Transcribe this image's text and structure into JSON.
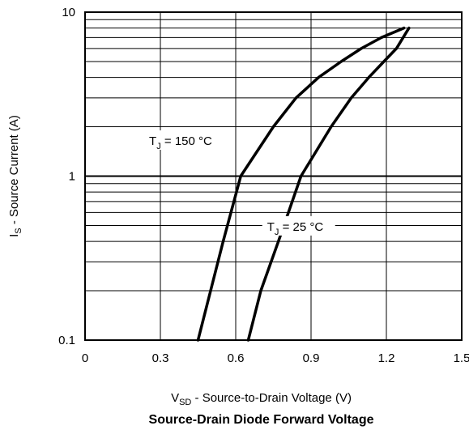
{
  "chart_data": {
    "type": "line",
    "title": "Source-Drain Diode Forward Voltage",
    "xlabel": {
      "main": "V",
      "sub": "SD",
      "rest": " - Source-to-Drain Voltage (V)"
    },
    "ylabel": {
      "main": "I",
      "sub": "S",
      "rest": " - Source Current (A)"
    },
    "xlim": [
      0,
      1.5
    ],
    "ylim": [
      0.1,
      10
    ],
    "yscale": "log",
    "grid": true,
    "x_ticks": [
      0,
      0.3,
      0.6,
      0.9,
      1.2,
      1.5
    ],
    "x_tick_labels": [
      "0",
      "0.3",
      "0.6",
      "0.9",
      "1.2",
      "1.5"
    ],
    "y_ticks": [
      0.1,
      1,
      10
    ],
    "y_tick_labels": [
      "0.1",
      "1",
      "10"
    ],
    "series": [
      {
        "label": {
          "main": "T",
          "sub": "J",
          "rest": " = 150 °C"
        },
        "x": [
          0.45,
          0.5,
          0.55,
          0.62,
          0.75,
          0.84,
          0.93,
          1.02,
          1.1,
          1.18,
          1.27
        ],
        "y": [
          0.1,
          0.2,
          0.4,
          1.0,
          2.0,
          3.0,
          4.0,
          5.0,
          6.0,
          7.0,
          8.0
        ]
      },
      {
        "label": {
          "main": "T",
          "sub": "J",
          "rest": " = 25 °C"
        },
        "x": [
          0.65,
          0.7,
          0.77,
          0.86,
          0.98,
          1.06,
          1.13,
          1.19,
          1.24,
          1.29
        ],
        "y": [
          0.1,
          0.2,
          0.4,
          1.0,
          2.0,
          3.0,
          4.0,
          5.0,
          6.0,
          8.0
        ]
      }
    ]
  }
}
